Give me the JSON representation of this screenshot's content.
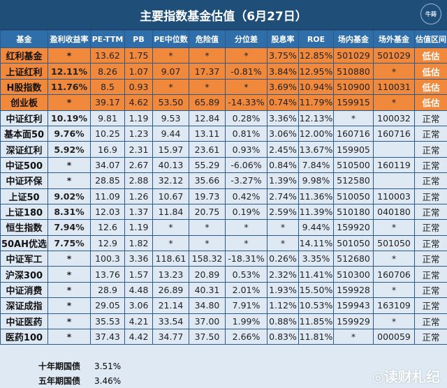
{
  "title": "主要指数基金估值（6月27日）",
  "logo_text": "牛蒔",
  "headers": [
    "基金",
    "盈利收益率",
    "PE-TTM",
    "PB",
    "PE中位数",
    "危险值",
    "分位差",
    "股息率",
    "ROE",
    "场内基金",
    "场外基金",
    "估值区间"
  ],
  "rows": [
    {
      "zone_type": "low",
      "cells": [
        "红利基金",
        "*",
        "13.62",
        "1.75",
        "*",
        "*",
        "*",
        "3.75%",
        "12.85%",
        "501029",
        "501029",
        "低估"
      ]
    },
    {
      "zone_type": "low",
      "cells": [
        "上证红利",
        "12.11%",
        "8.26",
        "1.07",
        "9.07",
        "17.37",
        "-0.81%",
        "3.84%",
        "12.95%",
        "510880",
        "*",
        "低估"
      ]
    },
    {
      "zone_type": "low",
      "cells": [
        "H股指数",
        "11.76%",
        "8.5",
        "0.93",
        "*",
        "*",
        "*",
        "3.69%",
        "10.94%",
        "510900",
        "110031",
        "低估"
      ]
    },
    {
      "zone_type": "low",
      "cells": [
        "创业板",
        "*",
        "39.17",
        "4.62",
        "53.50",
        "65.89",
        "-14.33%",
        "0.74%",
        "11.79%",
        "159915",
        "*",
        "低估"
      ]
    },
    {
      "zone_type": "norm",
      "cells": [
        "中证红利",
        "10.19%",
        "9.81",
        "1.19",
        "9.53",
        "12.84",
        "0.28%",
        "3.36%",
        "12.13%",
        "*",
        "100032",
        "正常"
      ]
    },
    {
      "zone_type": "norm",
      "cells": [
        "基本面50",
        "9.76%",
        "10.25",
        "1.23",
        "9.44",
        "13.11",
        "0.81%",
        "3.06%",
        "12.00%",
        "160716",
        "160716",
        "正常"
      ]
    },
    {
      "zone_type": "norm",
      "cells": [
        "深证红利",
        "5.92%",
        "16.9",
        "2.31",
        "15.97",
        "23.61",
        "0.93%",
        "2.45%",
        "13.67%",
        "159905",
        "",
        "正常"
      ]
    },
    {
      "zone_type": "norm",
      "cells": [
        "中证500",
        "*",
        "34.07",
        "2.67",
        "40.13",
        "55.29",
        "-6.06%",
        "0.84%",
        "7.84%",
        "510500",
        "160119",
        "正常"
      ]
    },
    {
      "zone_type": "norm",
      "cells": [
        "中证环保",
        "*",
        "28.85",
        "2.88",
        "32.12",
        "35.66",
        "-3.27%",
        "1.39%",
        "9.98%",
        "512580",
        "",
        "正常"
      ]
    },
    {
      "zone_type": "norm",
      "cells": [
        "上证50",
        "9.02%",
        "11.09",
        "1.26",
        "10.67",
        "19.73",
        "0.42%",
        "2.74%",
        "11.36%",
        "510050",
        "110003",
        "正常"
      ]
    },
    {
      "zone_type": "norm",
      "cells": [
        "上证180",
        "8.31%",
        "12.03",
        "1.37",
        "11.84",
        "20.75",
        "0.19%",
        "2.59%",
        "11.39%",
        "510180",
        "040180",
        "正常"
      ]
    },
    {
      "zone_type": "norm",
      "cells": [
        "恒生指数",
        "7.94%",
        "12.6",
        "1.19",
        "*",
        "*",
        "*",
        "*",
        "9.44%",
        "159920",
        "*",
        "正常"
      ]
    },
    {
      "zone_type": "norm",
      "cells": [
        "50AH优选",
        "7.75%",
        "12.9",
        "1.82",
        "*",
        "*",
        "*",
        "*",
        "14.11%",
        "501050",
        "501050",
        "正常"
      ]
    },
    {
      "zone_type": "norm",
      "cells": [
        "中证军工",
        "*",
        "100.3",
        "3.36",
        "118.61",
        "158.32",
        "-18.31%",
        "0.26%",
        "3.35%",
        "512680",
        "*",
        "正常"
      ]
    },
    {
      "zone_type": "norm",
      "cells": [
        "沪深300",
        "*",
        "13.76",
        "1.57",
        "13.23",
        "20.89",
        "0.53%",
        "2.32%",
        "11.41%",
        "510300",
        "160706",
        "正常"
      ]
    },
    {
      "zone_type": "norm",
      "cells": [
        "中证消费",
        "*",
        "28.9",
        "4.48",
        "26.89",
        "40.31",
        "2.01%",
        "1.93%",
        "15.50%",
        "159928",
        "*",
        "正常"
      ]
    },
    {
      "zone_type": "norm",
      "cells": [
        "深证成指",
        "*",
        "29.05",
        "3.06",
        "21.14",
        "34.80",
        "7.91%",
        "1.12%",
        "10.53%",
        "159943",
        "163109",
        "正常"
      ]
    },
    {
      "zone_type": "norm",
      "cells": [
        "中证医药",
        "*",
        "35.53",
        "4.21",
        "33.54",
        "37.00",
        "1.99%",
        "0.88%",
        "11.85%",
        "159929",
        "*",
        "正常"
      ]
    },
    {
      "zone_type": "norm",
      "cells": [
        "医药100",
        "*",
        "37.43",
        "4.42",
        "34.77",
        "37.50",
        "2.66%",
        "0.83%",
        "11.81%",
        "*",
        "000059",
        "正常"
      ]
    }
  ],
  "footer": [
    {
      "label": "十年期国债",
      "value": "3.51%"
    },
    {
      "label": "五年期国债",
      "value": "3.46%"
    }
  ],
  "watermark": "◎读财札纪",
  "colors": {
    "title_bg": "#1f4e79",
    "header_bg": "#2f6ea8",
    "undervalued_row": "#f0893b",
    "normal_row": "#dfe9f4"
  }
}
